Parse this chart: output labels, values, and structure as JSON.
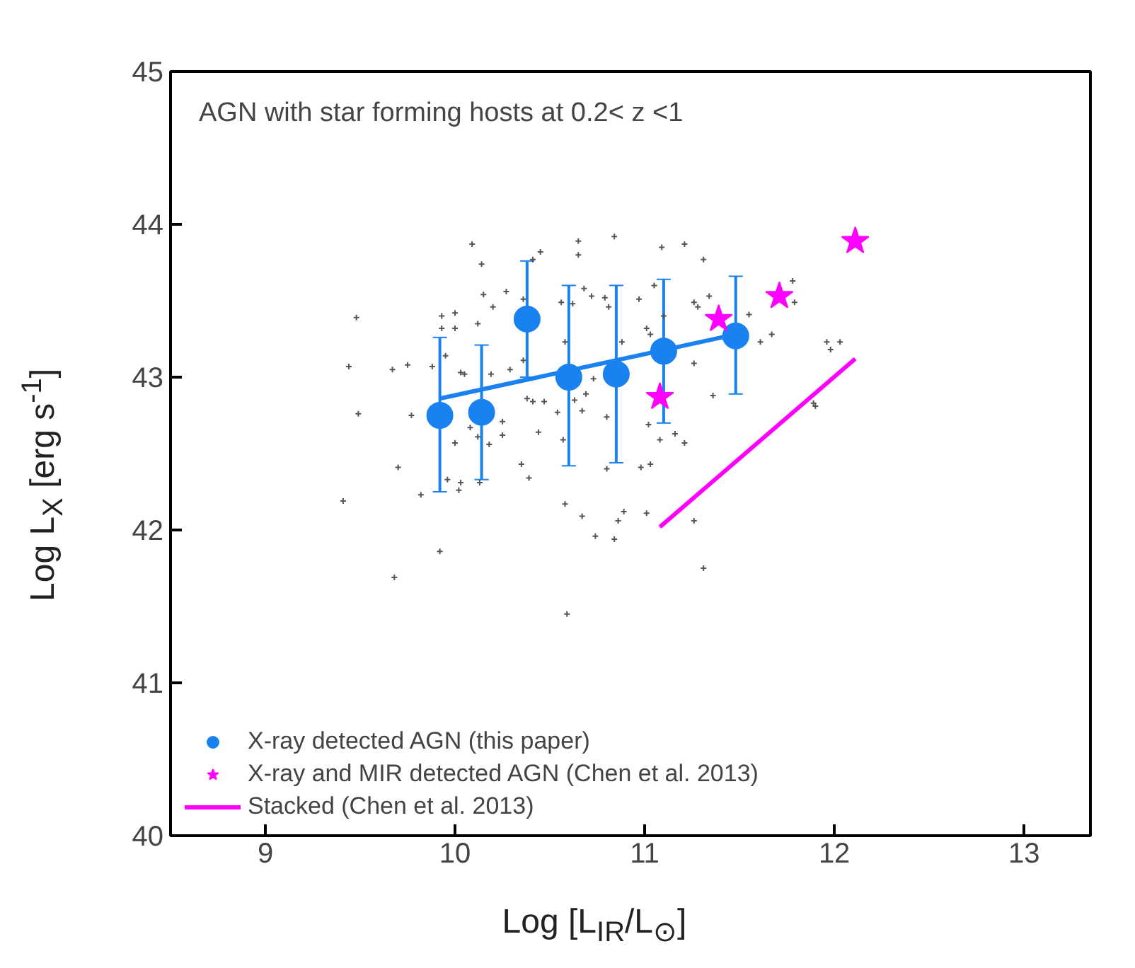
{
  "chart_data": {
    "type": "scatter",
    "title": "AGN with star forming hosts at 0.2< z <1",
    "xlabel": "Log [L$_{IR}$/L$_{⊙}$]",
    "ylabel": "Log L$_{X}$ [erg s$^{-1}$]",
    "xlim": [
      8.5,
      13.35
    ],
    "ylim": [
      40,
      45
    ],
    "xticks": [
      9,
      10,
      11,
      12,
      13
    ],
    "yticks": [
      40,
      41,
      42,
      43,
      44,
      45
    ],
    "grid": false,
    "legend": "bottom left",
    "series": [
      {
        "type": "scatter",
        "marker": "cross",
        "color": "#555555",
        "x": [
          9.48,
          9.44,
          9.49,
          9.41,
          9.68,
          9.7,
          9.67,
          9.75,
          9.77,
          9.82,
          9.88,
          9.92,
          9.93,
          10.0,
          9.93,
          10.0,
          10.09,
          10.14,
          10.15,
          10.2,
          10.12,
          10.03,
          10.05,
          9.95,
          10.0,
          10.08,
          10.12,
          10.18,
          10.25,
          10.25,
          10.19,
          9.96,
          10.03,
          10.02,
          10.13,
          10.27,
          10.36,
          10.45,
          10.41,
          10.36,
          10.29,
          10.38,
          10.41,
          10.47,
          10.44,
          10.35,
          10.39,
          10.65,
          10.65,
          10.56,
          10.62,
          10.68,
          10.72,
          10.79,
          10.84,
          10.81,
          10.58,
          10.63,
          10.54,
          10.67,
          10.73,
          10.69,
          10.8,
          10.57,
          10.58,
          10.67,
          10.74,
          10.84,
          10.86,
          10.89,
          11.01,
          10.98,
          11.03,
          10.8,
          10.88,
          10.97,
          11.05,
          11.09,
          11.21,
          11.31,
          11.1,
          11.01,
          11.03,
          11.26,
          11.34,
          11.28,
          11.26,
          11.36,
          11.16,
          11.21,
          11.08,
          11.02,
          11.26,
          11.31,
          11.55,
          11.67,
          11.61,
          11.78,
          11.79,
          11.96,
          11.98,
          11.9,
          10.59,
          12.03,
          11.89
        ],
        "values": [
          43.39,
          43.07,
          42.76,
          42.19,
          41.69,
          42.41,
          43.05,
          43.08,
          42.75,
          42.23,
          43.07,
          41.86,
          43.4,
          43.42,
          43.32,
          43.32,
          43.87,
          43.74,
          43.54,
          43.46,
          43.35,
          43.03,
          43.02,
          43.14,
          42.57,
          42.67,
          42.61,
          42.56,
          42.62,
          42.71,
          43.02,
          42.33,
          42.31,
          42.26,
          42.31,
          43.56,
          43.51,
          43.82,
          43.77,
          43.11,
          43.05,
          42.86,
          42.84,
          42.84,
          42.64,
          42.43,
          42.34,
          43.89,
          43.8,
          43.49,
          43.48,
          43.58,
          43.53,
          43.52,
          43.92,
          43.46,
          43.23,
          42.85,
          42.77,
          42.78,
          42.99,
          42.89,
          42.74,
          42.59,
          42.17,
          42.09,
          41.96,
          41.94,
          42.06,
          42.12,
          42.11,
          42.41,
          42.43,
          42.4,
          43.23,
          43.51,
          43.6,
          43.85,
          43.87,
          43.77,
          43.4,
          43.32,
          43.28,
          43.49,
          43.53,
          43.46,
          43.09,
          42.88,
          42.63,
          42.57,
          42.59,
          42.69,
          42.06,
          41.75,
          43.41,
          43.28,
          43.23,
          43.63,
          43.49,
          43.23,
          43.18,
          42.81,
          41.45,
          43.23,
          42.83
        ]
      },
      {
        "type": "line",
        "color": "#1a82f0",
        "x": [
          9.92,
          11.48
        ],
        "values": [
          42.86,
          43.28
        ]
      },
      {
        "type": "scatter",
        "marker": "circle",
        "name": "X-ray detected AGN (this paper)",
        "color": "#1a82f0",
        "x": [
          9.92,
          10.14,
          10.38,
          10.6,
          10.85,
          11.1,
          11.48
        ],
        "values": [
          42.75,
          42.77,
          43.38,
          43.0,
          43.02,
          43.17,
          43.27
        ],
        "errors": [
          [
            42.25,
            43.26
          ],
          [
            42.33,
            43.21
          ],
          [
            43.0,
            43.76
          ],
          [
            42.42,
            43.6
          ],
          [
            42.44,
            43.6
          ],
          [
            42.7,
            43.64
          ],
          [
            42.89,
            43.66
          ]
        ]
      },
      {
        "type": "scatter",
        "marker": "star",
        "name": "X-ray and MIR detected AGN (Chen et al. 2013)",
        "color": "#ff00ff",
        "x": [
          11.08,
          11.39,
          11.71,
          12.11
        ],
        "values": [
          42.87,
          43.38,
          43.53,
          43.89
        ]
      },
      {
        "type": "line",
        "name": "Stacked (Chen et al. 2013)",
        "color": "#ff00ff",
        "x": [
          11.08,
          12.11
        ],
        "values": [
          42.02,
          43.12
        ]
      }
    ]
  }
}
